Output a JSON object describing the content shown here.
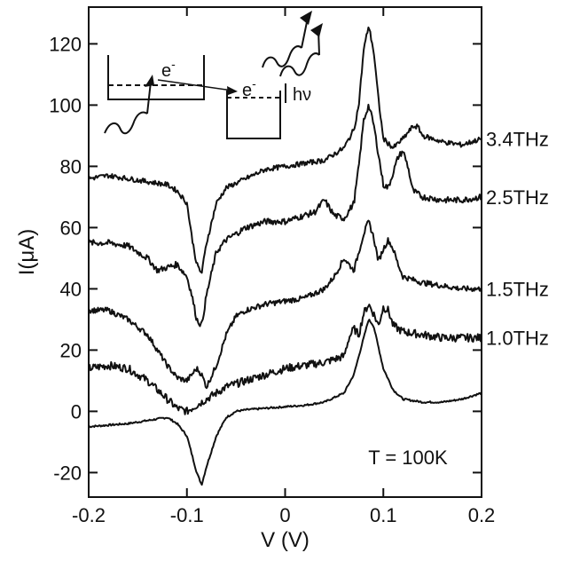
{
  "chart_data": {
    "type": "line",
    "xlabel": "V (V)",
    "ylabel": "I(μA)",
    "xlim": [
      -0.2,
      0.2
    ],
    "ylim": [
      -28,
      132
    ],
    "xticks": [
      -0.2,
      -0.1,
      0,
      0.1,
      0.2
    ],
    "xtick_labels": [
      "-0.2",
      "-0.1",
      "0",
      "0.1",
      "0.2"
    ],
    "yticks": [
      -20,
      0,
      20,
      40,
      60,
      80,
      100,
      120
    ],
    "ytick_labels": [
      "-20",
      "0",
      "20",
      "40",
      "60",
      "80",
      "100",
      "120"
    ],
    "grid": false,
    "annotation": "T = 100K",
    "inset": {
      "electron_label_1": "e",
      "electron_label_2": "e",
      "superscript": "-",
      "photon_label": "hν"
    },
    "series": [
      {
        "name": "",
        "noise": 0.3,
        "x": [
          -0.2,
          -0.18,
          -0.16,
          -0.14,
          -0.12,
          -0.11,
          -0.1,
          -0.095,
          -0.09,
          -0.085,
          -0.08,
          -0.07,
          -0.06,
          -0.05,
          -0.04,
          -0.02,
          0,
          0.02,
          0.04,
          0.06,
          0.07,
          0.08,
          0.085,
          0.09,
          0.095,
          0.1,
          0.11,
          0.12,
          0.14,
          0.16,
          0.18,
          0.2
        ],
        "y": [
          -5,
          -4.5,
          -4,
          -3,
          -2,
          -4,
          -8,
          -14,
          -20,
          -24,
          -18,
          -8,
          -2,
          0,
          0.5,
          1,
          1.5,
          2,
          3,
          6,
          12,
          24,
          30,
          28,
          21,
          14,
          7,
          4,
          3,
          3,
          4,
          6
        ]
      },
      {
        "name": "1.0THz",
        "noise": 1.3,
        "x": [
          -0.2,
          -0.18,
          -0.16,
          -0.14,
          -0.12,
          -0.11,
          -0.1,
          -0.095,
          -0.09,
          -0.08,
          -0.07,
          -0.06,
          -0.04,
          -0.02,
          0,
          0.02,
          0.04,
          0.06,
          0.065,
          0.07,
          0.075,
          0.08,
          0.085,
          0.09,
          0.095,
          0.1,
          0.105,
          0.11,
          0.12,
          0.14,
          0.16,
          0.18,
          0.2
        ],
        "y": [
          14,
          15,
          14,
          10,
          4,
          1,
          0,
          1,
          2,
          4,
          6,
          8,
          10,
          12,
          14,
          15,
          16,
          18,
          24,
          27,
          25,
          32,
          35,
          32,
          28,
          34,
          33,
          28,
          26,
          25,
          24,
          24,
          24
        ]
      },
      {
        "name": "1.5THz",
        "noise": 0.9,
        "x": [
          -0.2,
          -0.18,
          -0.16,
          -0.14,
          -0.12,
          -0.11,
          -0.1,
          -0.095,
          -0.09,
          -0.085,
          -0.08,
          -0.07,
          -0.06,
          -0.05,
          -0.04,
          -0.02,
          0,
          0.02,
          0.04,
          0.05,
          0.06,
          0.07,
          0.08,
          0.085,
          0.09,
          0.095,
          0.1,
          0.105,
          0.11,
          0.115,
          0.12,
          0.14,
          0.16,
          0.18,
          0.2
        ],
        "y": [
          33,
          33,
          30,
          25,
          15,
          11,
          10,
          12,
          14,
          12,
          8,
          15,
          25,
          31,
          33,
          35,
          36,
          37,
          40,
          44,
          50,
          46,
          58,
          62,
          57,
          49,
          53,
          56,
          53,
          48,
          44,
          42,
          41,
          40,
          40
        ]
      },
      {
        "name": "2.5THz",
        "noise": 1.0,
        "x": [
          -0.2,
          -0.18,
          -0.16,
          -0.14,
          -0.13,
          -0.12,
          -0.11,
          -0.1,
          -0.095,
          -0.09,
          -0.085,
          -0.08,
          -0.07,
          -0.06,
          -0.05,
          -0.04,
          -0.02,
          0,
          0.02,
          0.03,
          0.04,
          0.05,
          0.06,
          0.07,
          0.075,
          0.08,
          0.085,
          0.09,
          0.1,
          0.105,
          0.11,
          0.115,
          0.12,
          0.125,
          0.13,
          0.14,
          0.16,
          0.18,
          0.2
        ],
        "y": [
          55,
          55,
          54,
          50,
          46,
          47,
          48,
          44,
          38,
          30,
          28,
          38,
          52,
          56,
          58,
          60,
          62,
          62,
          64,
          65,
          69,
          64,
          63,
          68,
          80,
          95,
          100,
          94,
          74,
          73,
          78,
          83,
          85,
          80,
          72,
          70,
          69,
          69,
          70
        ]
      },
      {
        "name": "3.4THz",
        "noise": 0.8,
        "x": [
          -0.2,
          -0.18,
          -0.16,
          -0.14,
          -0.12,
          -0.11,
          -0.1,
          -0.095,
          -0.09,
          -0.085,
          -0.08,
          -0.07,
          -0.06,
          -0.04,
          -0.02,
          0,
          0.02,
          0.04,
          0.06,
          0.07,
          0.075,
          0.08,
          0.085,
          0.09,
          0.095,
          0.1,
          0.11,
          0.12,
          0.13,
          0.135,
          0.14,
          0.16,
          0.18,
          0.2
        ],
        "y": [
          76,
          77,
          76,
          75,
          74,
          72,
          68,
          57,
          48,
          45,
          55,
          68,
          73,
          76,
          79,
          80,
          81,
          82,
          86,
          92,
          100,
          118,
          126,
          118,
          102,
          89,
          86,
          89,
          93,
          93,
          90,
          88,
          87,
          89
        ]
      }
    ]
  }
}
